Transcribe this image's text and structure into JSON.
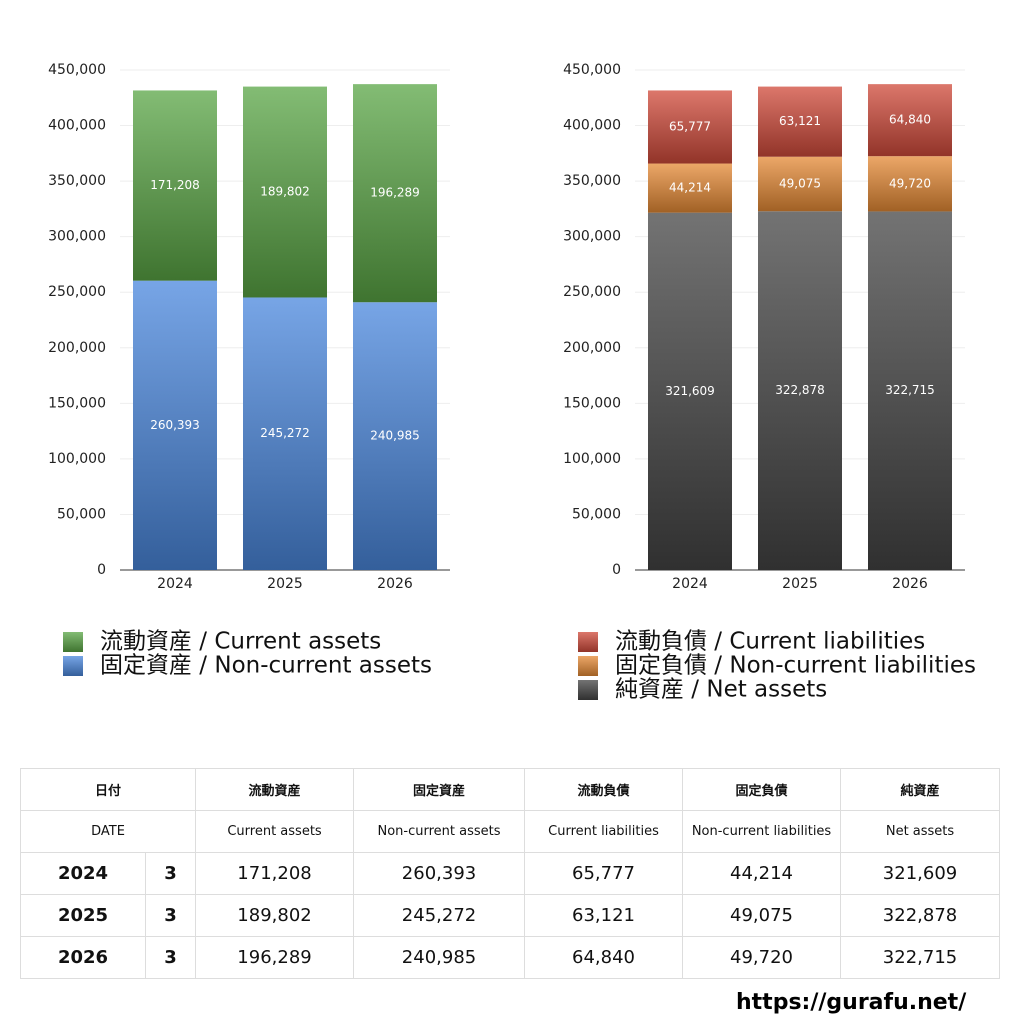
{
  "chart_data": [
    {
      "type": "stacked-bar",
      "categories": [
        "2024",
        "2025",
        "2026"
      ],
      "series": [
        {
          "name": "流動資産 / Current assets",
          "color": "#5aa545",
          "values": [
            171208,
            189802,
            196289
          ],
          "value_labels": [
            "171,208",
            "189,802",
            "196,289"
          ]
        },
        {
          "name": "固定資産 / Non-current assets",
          "color": "#4a87de",
          "values": [
            260393,
            245272,
            240985
          ],
          "value_labels": [
            "260,393",
            "245,272",
            "240,985"
          ]
        }
      ],
      "ylim": [
        0,
        450000
      ],
      "yticks": [
        0,
        {
          "value": 50000,
          "label": "50,000"
        },
        {
          "value": 100000,
          "label": "100,000"
        },
        {
          "value": 150000,
          "label": "150,000"
        },
        {
          "value": 200000,
          "label": "200,000"
        },
        {
          "value": 250000,
          "label": "250,000"
        },
        {
          "value": 300000,
          "label": "300,000"
        },
        {
          "value": 350000,
          "label": "350,000"
        },
        {
          "value": 400000,
          "label": "400,000"
        },
        {
          "value": 450000,
          "label": "450,000"
        }
      ],
      "grid": true
    },
    {
      "type": "stacked-bar",
      "categories": [
        "2024",
        "2025",
        "2026"
      ],
      "series": [
        {
          "name": "流動負債 / Current liabilities",
          "color": "#d04a3a",
          "values": [
            65777,
            63121,
            64840
          ],
          "value_labels": [
            "65,777",
            "63,121",
            "64,840"
          ]
        },
        {
          "name": "固定負債 / Non-current liabilities",
          "color": "#e68a35",
          "values": [
            44214,
            49075,
            49720
          ],
          "value_labels": [
            "44,214",
            "49,075",
            "49,720"
          ]
        },
        {
          "name": "純資産 / Net assets",
          "color": "#444444",
          "values": [
            321609,
            322878,
            322715
          ],
          "value_labels": [
            "321,609",
            "322,878",
            "322,715"
          ]
        }
      ],
      "ylim": [
        0,
        450000
      ],
      "yticks": [
        0,
        {
          "value": 50000,
          "label": "50,000"
        },
        {
          "value": 100000,
          "label": "100,000"
        },
        {
          "value": 150000,
          "label": "150,000"
        },
        {
          "value": 200000,
          "label": "200,000"
        },
        {
          "value": 250000,
          "label": "250,000"
        },
        {
          "value": 300000,
          "label": "300,000"
        },
        {
          "value": 350000,
          "label": "350,000"
        },
        {
          "value": 400000,
          "label": "400,000"
        },
        {
          "value": 450000,
          "label": "450,000"
        }
      ],
      "grid": true
    }
  ],
  "table": {
    "header": [
      "日付",
      "流動資産",
      "固定資産",
      "流動負債",
      "固定負債",
      "純資産"
    ],
    "subheader": [
      "DATE",
      "Current assets",
      "Non-current assets",
      "Current liabilities",
      "Non-current liabilities",
      "Net assets"
    ],
    "rows": [
      [
        "2024",
        "3",
        "171,208",
        "260,393",
        "65,777",
        "44,214",
        "321,609"
      ],
      [
        "2025",
        "3",
        "189,802",
        "245,272",
        "63,121",
        "49,075",
        "322,878"
      ],
      [
        "2026",
        "3",
        "196,289",
        "240,985",
        "64,840",
        "49,720",
        "322,715"
      ]
    ]
  },
  "footer": "https://gurafu.net/"
}
